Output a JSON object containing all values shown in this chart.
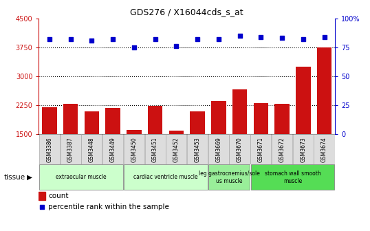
{
  "title": "GDS276 / X16044cds_s_at",
  "samples": [
    "GSM3386",
    "GSM3387",
    "GSM3448",
    "GSM3449",
    "GSM3450",
    "GSM3451",
    "GSM3452",
    "GSM3453",
    "GSM3669",
    "GSM3670",
    "GSM3671",
    "GSM3672",
    "GSM3673",
    "GSM3674"
  ],
  "counts": [
    2200,
    2275,
    2080,
    2170,
    1600,
    2230,
    1580,
    2080,
    2350,
    2650,
    2300,
    2280,
    3250,
    3750
  ],
  "percentiles": [
    82,
    82,
    81,
    82,
    75,
    82,
    76,
    82,
    82,
    85,
    84,
    83,
    82,
    84
  ],
  "ylim_left": [
    1500,
    4500
  ],
  "ylim_right": [
    0,
    100
  ],
  "yticks_left": [
    1500,
    2250,
    3000,
    3750,
    4500
  ],
  "yticks_right": [
    0,
    25,
    50,
    75,
    100
  ],
  "bar_color": "#cc1111",
  "dot_color": "#0000cc",
  "tissue_groups": [
    {
      "label": "extraocular muscle",
      "start": 0,
      "end": 4,
      "color": "#ccffcc"
    },
    {
      "label": "cardiac ventricle muscle",
      "start": 4,
      "end": 8,
      "color": "#ccffcc"
    },
    {
      "label": "leg gastrocnemius/sole\nus muscle",
      "start": 8,
      "end": 10,
      "color": "#99ee99"
    },
    {
      "label": "stomach wall smooth\nmuscle",
      "start": 10,
      "end": 14,
      "color": "#55dd55"
    }
  ],
  "legend_count_label": "count",
  "legend_pct_label": "percentile rank within the sample",
  "tissue_label": "tissue",
  "dotted_lines": [
    2250,
    3000,
    3750
  ],
  "xticklabel_bg": "#dddddd"
}
